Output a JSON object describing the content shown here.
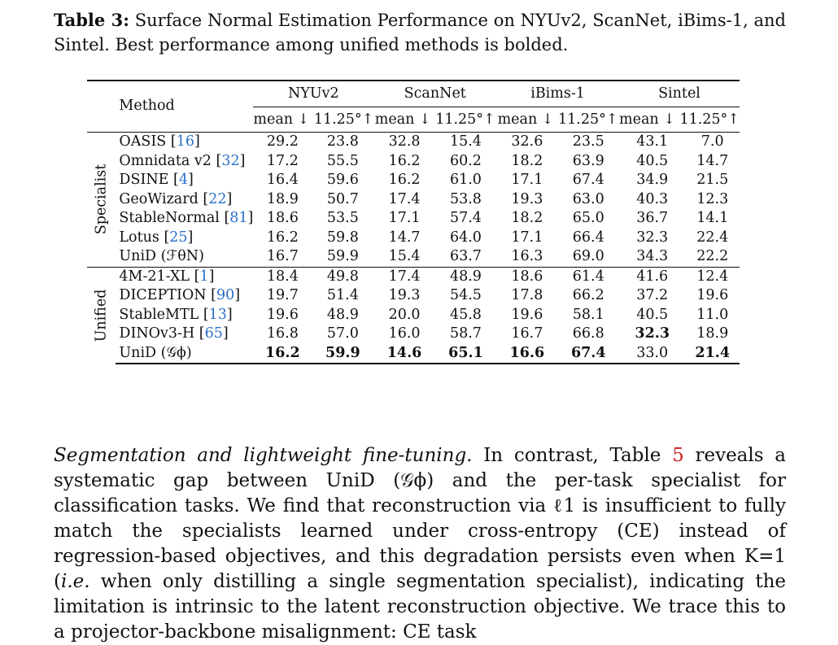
{
  "caption": {
    "label": "Table 3:",
    "text": "Surface Normal Estimation Performance on NYUv2, ScanNet, iBims-1, and Sintel. Best performance among unified methods is bolded."
  },
  "table": {
    "method_header": "Method",
    "datasets": [
      "NYUv2",
      "ScanNet",
      "iBims-1",
      "Sintel"
    ],
    "metric_header": "mean ↓ 11.25°↑",
    "groups": [
      {
        "label": "Specialist",
        "rows": [
          {
            "name": "OASIS",
            "ref": "16",
            "vals": [
              "29.2",
              "23.8",
              "32.8",
              "15.4",
              "32.6",
              "23.5",
              "43.1",
              "7.0"
            ]
          },
          {
            "name": "Omnidata v2",
            "ref": "32",
            "vals": [
              "17.2",
              "55.5",
              "16.2",
              "60.2",
              "18.2",
              "63.9",
              "40.5",
              "14.7"
            ]
          },
          {
            "name": "DSINE",
            "ref": "4",
            "vals": [
              "16.4",
              "59.6",
              "16.2",
              "61.0",
              "17.1",
              "67.4",
              "34.9",
              "21.5"
            ]
          },
          {
            "name": "GeoWizard",
            "ref": "22",
            "vals": [
              "18.9",
              "50.7",
              "17.4",
              "53.8",
              "19.3",
              "63.0",
              "40.3",
              "12.3"
            ]
          },
          {
            "name": "StableNormal",
            "ref": "81",
            "vals": [
              "18.6",
              "53.5",
              "17.1",
              "57.4",
              "18.2",
              "65.0",
              "36.7",
              "14.1"
            ]
          },
          {
            "name": "Lotus",
            "ref": "25",
            "vals": [
              "16.2",
              "59.8",
              "14.7",
              "64.0",
              "17.1",
              "66.4",
              "32.3",
              "22.4"
            ]
          },
          {
            "name": "UniD (ℱθN)",
            "ref": "",
            "vals": [
              "16.7",
              "59.9",
              "15.4",
              "63.7",
              "16.3",
              "69.0",
              "34.3",
              "22.2"
            ]
          }
        ]
      },
      {
        "label": "Unified",
        "rows": [
          {
            "name": "4M-21-XL",
            "ref": "1",
            "vals": [
              "18.4",
              "49.8",
              "17.4",
              "48.9",
              "18.6",
              "61.4",
              "41.6",
              "12.4"
            ]
          },
          {
            "name": "DICEPTION",
            "ref": "90",
            "vals": [
              "19.7",
              "51.4",
              "19.3",
              "54.5",
              "17.8",
              "66.2",
              "37.2",
              "19.6"
            ]
          },
          {
            "name": "StableMTL",
            "ref": "13",
            "vals": [
              "19.6",
              "48.9",
              "20.0",
              "45.8",
              "19.6",
              "58.1",
              "40.5",
              "11.0"
            ]
          },
          {
            "name": "DINOv3-H",
            "ref": "65",
            "vals": [
              "16.8",
              "57.0",
              "16.0",
              "58.7",
              "16.7",
              "66.8",
              "32.3",
              "18.9"
            ]
          },
          {
            "name": "UniD (𝒢ϕ)",
            "ref": "",
            "vals": [
              "16.2",
              "59.9",
              "14.6",
              "65.1",
              "16.6",
              "67.4",
              "33.0",
              "21.4"
            ]
          }
        ]
      }
    ]
  },
  "paragraph": {
    "lead": "Segmentation and lightweight fine-tuning.",
    "t1": " In contrast, Table ",
    "table_ref": "5",
    "t2": " reveals a systematic gap between UniD (𝒢ϕ) and the per-task specialist for classification tasks. We find that reconstruction via ℓ1 is insufficient to fully match the specialists learned under cross-entropy (CE) instead of regression-based objectives, and this degradation persists even when K=1 (",
    "ie": "i.e.",
    "t3": " when only distilling a single segmentation specialist), indicating the limitation is intrinsic to the latent reconstruction objective. We trace this to a projector-backbone misalignment: CE task"
  }
}
